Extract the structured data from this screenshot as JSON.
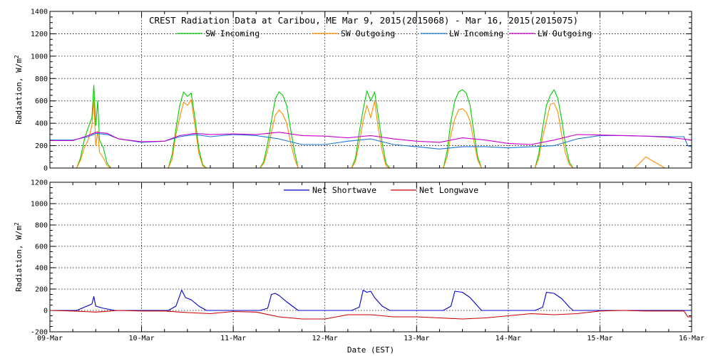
{
  "chart_data": [
    {
      "type": "line",
      "title": "CREST Radiation Data at Caribou, ME   Mar  9, 2015(2015068) - Mar 16, 2015(2015075)",
      "xlabel": "",
      "ylabel": "Radiation, W/m^2",
      "xlim": [
        "2015-03-09T00:00",
        "2015-03-16T00:00"
      ],
      "ylim": [
        0,
        1400
      ],
      "yticks": [
        0,
        200,
        400,
        600,
        800,
        1000,
        1200,
        1400
      ],
      "grid": true,
      "legend_position": "top",
      "series": [
        {
          "name": "SW Incoming",
          "color": "#00cc00",
          "x": [
            "2015-03-09T07:00",
            "2015-03-09T08:00",
            "2015-03-09T09:00",
            "2015-03-09T10:00",
            "2015-03-09T11:00",
            "2015-03-09T11:30",
            "2015-03-09T12:00",
            "2015-03-09T12:30",
            "2015-03-09T13:00",
            "2015-03-09T14:00",
            "2015-03-09T15:00",
            "2015-03-09T16:00",
            "2015-03-09T17:00",
            "2015-03-10T07:00",
            "2015-03-10T08:00",
            "2015-03-10T09:00",
            "2015-03-10T10:00",
            "2015-03-10T11:00",
            "2015-03-10T12:00",
            "2015-03-10T13:00",
            "2015-03-10T14:00",
            "2015-03-10T15:00",
            "2015-03-10T16:00",
            "2015-03-10T17:00",
            "2015-03-11T07:00",
            "2015-03-11T08:00",
            "2015-03-11T09:00",
            "2015-03-11T10:00",
            "2015-03-11T11:00",
            "2015-03-11T12:00",
            "2015-03-11T13:00",
            "2015-03-11T14:00",
            "2015-03-11T15:00",
            "2015-03-11T16:00",
            "2015-03-11T17:00",
            "2015-03-12T07:00",
            "2015-03-12T08:00",
            "2015-03-12T09:00",
            "2015-03-12T10:00",
            "2015-03-12T11:00",
            "2015-03-12T12:00",
            "2015-03-12T13:00",
            "2015-03-12T14:00",
            "2015-03-12T15:00",
            "2015-03-12T16:00",
            "2015-03-12T17:00",
            "2015-03-13T07:00",
            "2015-03-13T08:00",
            "2015-03-13T09:00",
            "2015-03-13T10:00",
            "2015-03-13T11:00",
            "2015-03-13T12:00",
            "2015-03-13T13:00",
            "2015-03-13T14:00",
            "2015-03-13T15:00",
            "2015-03-13T16:00",
            "2015-03-13T17:00",
            "2015-03-14T07:00",
            "2015-03-14T08:00",
            "2015-03-14T09:00",
            "2015-03-14T10:00",
            "2015-03-14T11:00",
            "2015-03-14T12:00",
            "2015-03-14T13:00",
            "2015-03-14T14:00",
            "2015-03-14T15:00",
            "2015-03-14T16:00",
            "2015-03-14T17:00"
          ],
          "y": [
            0,
            90,
            250,
            360,
            450,
            740,
            380,
            600,
            250,
            180,
            40,
            0,
            0,
            0,
            120,
            350,
            560,
            680,
            640,
            670,
            440,
            170,
            30,
            0,
            0,
            60,
            220,
            420,
            620,
            680,
            650,
            560,
            350,
            150,
            0,
            0,
            90,
            320,
            520,
            690,
            600,
            680,
            460,
            220,
            40,
            0,
            0,
            150,
            420,
            600,
            680,
            700,
            670,
            560,
            320,
            100,
            0,
            0,
            130,
            360,
            560,
            650,
            700,
            620,
            430,
            200,
            50,
            0
          ]
        },
        {
          "name": "SW Outgoing",
          "color": "#ff8c00",
          "x": [
            "2015-03-09T07:00",
            "2015-03-09T08:00",
            "2015-03-09T09:00",
            "2015-03-09T10:00",
            "2015-03-09T11:00",
            "2015-03-09T11:30",
            "2015-03-09T12:00",
            "2015-03-09T12:30",
            "2015-03-09T13:00",
            "2015-03-09T14:00",
            "2015-03-09T15:00",
            "2015-03-09T16:00",
            "2015-03-09T17:00",
            "2015-03-10T07:00",
            "2015-03-10T08:00",
            "2015-03-10T09:00",
            "2015-03-10T10:00",
            "2015-03-10T11:00",
            "2015-03-10T12:00",
            "2015-03-10T13:00",
            "2015-03-10T14:00",
            "2015-03-10T15:00",
            "2015-03-10T16:00",
            "2015-03-10T17:00",
            "2015-03-11T07:00",
            "2015-03-11T08:00",
            "2015-03-11T09:00",
            "2015-03-11T10:00",
            "2015-03-11T11:00",
            "2015-03-11T12:00",
            "2015-03-11T13:00",
            "2015-03-11T14:00",
            "2015-03-11T15:00",
            "2015-03-11T16:00",
            "2015-03-11T17:00",
            "2015-03-12T07:00",
            "2015-03-12T08:00",
            "2015-03-12T09:00",
            "2015-03-12T10:00",
            "2015-03-12T11:00",
            "2015-03-12T12:00",
            "2015-03-12T13:00",
            "2015-03-12T14:00",
            "2015-03-12T15:00",
            "2015-03-12T16:00",
            "2015-03-12T17:00",
            "2015-03-13T07:00",
            "2015-03-13T08:00",
            "2015-03-13T09:00",
            "2015-03-13T10:00",
            "2015-03-13T11:00",
            "2015-03-13T12:00",
            "2015-03-13T13:00",
            "2015-03-13T14:00",
            "2015-03-13T15:00",
            "2015-03-13T16:00",
            "2015-03-13T17:00",
            "2015-03-14T07:00",
            "2015-03-14T08:00",
            "2015-03-14T09:00",
            "2015-03-14T10:00",
            "2015-03-14T11:00",
            "2015-03-14T12:00",
            "2015-03-14T13:00",
            "2015-03-14T14:00",
            "2015-03-14T15:00",
            "2015-03-14T16:00",
            "2015-03-14T17:00",
            "2015-03-15T09:00",
            "2015-03-15T10:00",
            "2015-03-15T12:00",
            "2015-03-15T14:00",
            "2015-03-15T16:00",
            "2015-03-15T17:00"
          ],
          "y": [
            0,
            70,
            180,
            250,
            380,
            610,
            200,
            330,
            140,
            90,
            20,
            0,
            0,
            0,
            80,
            300,
            450,
            590,
            560,
            610,
            370,
            130,
            20,
            0,
            0,
            40,
            160,
            320,
            470,
            520,
            480,
            400,
            230,
            90,
            0,
            0,
            60,
            230,
            420,
            560,
            450,
            600,
            350,
            150,
            20,
            0,
            0,
            100,
            300,
            440,
            520,
            530,
            500,
            420,
            240,
            70,
            0,
            0,
            90,
            280,
            420,
            570,
            580,
            500,
            290,
            130,
            30,
            0,
            0,
            30,
            100,
            60,
            20,
            0
          ]
        },
        {
          "name": "LW Incoming",
          "color": "#1f77d4",
          "x": [
            "2015-03-09T00:00",
            "2015-03-09T06:00",
            "2015-03-09T10:00",
            "2015-03-09T12:00",
            "2015-03-09T15:00",
            "2015-03-09T18:00",
            "2015-03-10T00:00",
            "2015-03-10T06:00",
            "2015-03-10T10:00",
            "2015-03-10T14:00",
            "2015-03-10T18:00",
            "2015-03-11T00:00",
            "2015-03-11T06:00",
            "2015-03-11T12:00",
            "2015-03-11T18:00",
            "2015-03-12T00:00",
            "2015-03-12T06:00",
            "2015-03-12T12:00",
            "2015-03-12T18:00",
            "2015-03-13T00:00",
            "2015-03-13T06:00",
            "2015-03-13T12:00",
            "2015-03-13T18:00",
            "2015-03-14T00:00",
            "2015-03-14T06:00",
            "2015-03-14T12:00",
            "2015-03-14T18:00",
            "2015-03-15T00:00",
            "2015-03-15T06:00",
            "2015-03-15T12:00",
            "2015-03-15T18:00",
            "2015-03-15T22:00",
            "2015-03-15T23:00",
            "2015-03-16T00:00"
          ],
          "y": [
            250,
            250,
            280,
            310,
            300,
            260,
            230,
            240,
            280,
            300,
            280,
            300,
            290,
            260,
            210,
            210,
            240,
            260,
            210,
            190,
            170,
            190,
            190,
            180,
            190,
            200,
            260,
            290,
            290,
            285,
            280,
            280,
            200,
            190
          ]
        },
        {
          "name": "LW Outgoing",
          "color": "#cc00cc",
          "x": [
            "2015-03-09T00:00",
            "2015-03-09T06:00",
            "2015-03-09T10:00",
            "2015-03-09T12:00",
            "2015-03-09T15:00",
            "2015-03-09T18:00",
            "2015-03-10T00:00",
            "2015-03-10T06:00",
            "2015-03-10T10:00",
            "2015-03-10T14:00",
            "2015-03-10T18:00",
            "2015-03-11T00:00",
            "2015-03-11T06:00",
            "2015-03-11T12:00",
            "2015-03-11T18:00",
            "2015-03-12T00:00",
            "2015-03-12T06:00",
            "2015-03-12T12:00",
            "2015-03-12T18:00",
            "2015-03-13T00:00",
            "2015-03-13T06:00",
            "2015-03-13T12:00",
            "2015-03-13T18:00",
            "2015-03-14T00:00",
            "2015-03-14T06:00",
            "2015-03-14T12:00",
            "2015-03-14T18:00",
            "2015-03-15T00:00",
            "2015-03-15T06:00",
            "2015-03-15T12:00",
            "2015-03-15T18:00",
            "2015-03-16T00:00"
          ],
          "y": [
            245,
            245,
            290,
            320,
            310,
            260,
            235,
            240,
            290,
            310,
            300,
            305,
            300,
            320,
            290,
            285,
            270,
            290,
            260,
            240,
            230,
            270,
            250,
            220,
            210,
            250,
            300,
            295,
            290,
            285,
            275,
            250
          ]
        }
      ]
    },
    {
      "type": "line",
      "title": "",
      "xlabel": "Date (EST)",
      "ylabel": "Radiation, W/m^2",
      "xlim": [
        "2015-03-09T00:00",
        "2015-03-16T00:00"
      ],
      "ylim": [
        -200,
        1200
      ],
      "yticks": [
        -200,
        0,
        200,
        400,
        600,
        800,
        1000,
        1200
      ],
      "xticks": [
        "09-Mar",
        "10-Mar",
        "11-Mar",
        "12-Mar",
        "13-Mar",
        "14-Mar",
        "15-Mar",
        "16-Mar"
      ],
      "grid": true,
      "legend_position": "top",
      "series": [
        {
          "name": "Net Shortwave",
          "color": "#0000cc",
          "x": [
            "2015-03-09T00:00",
            "2015-03-09T07:00",
            "2015-03-09T09:00",
            "2015-03-09T11:00",
            "2015-03-09T11:30",
            "2015-03-09T12:00",
            "2015-03-09T14:00",
            "2015-03-09T17:00",
            "2015-03-10T07:00",
            "2015-03-10T09:00",
            "2015-03-10T10:30",
            "2015-03-10T11:30",
            "2015-03-10T13:00",
            "2015-03-10T15:00",
            "2015-03-10T17:00",
            "2015-03-11T07:00",
            "2015-03-11T09:00",
            "2015-03-11T10:00",
            "2015-03-11T11:00",
            "2015-03-11T12:00",
            "2015-03-11T14:00",
            "2015-03-11T17:00",
            "2015-03-12T07:00",
            "2015-03-12T09:00",
            "2015-03-12T10:00",
            "2015-03-12T11:00",
            "2015-03-12T12:00",
            "2015-03-12T13:00",
            "2015-03-12T15:00",
            "2015-03-12T17:00",
            "2015-03-13T07:00",
            "2015-03-13T09:00",
            "2015-03-13T10:00",
            "2015-03-13T12:00",
            "2015-03-13T14:00",
            "2015-03-13T16:00",
            "2015-03-13T17:00",
            "2015-03-14T07:00",
            "2015-03-14T09:00",
            "2015-03-14T10:00",
            "2015-03-14T12:00",
            "2015-03-14T14:00",
            "2015-03-14T16:00",
            "2015-03-14T17:00",
            "2015-03-15T00:00",
            "2015-03-16T00:00"
          ],
          "y": [
            0,
            0,
            30,
            60,
            130,
            40,
            20,
            0,
            0,
            40,
            190,
            120,
            100,
            40,
            0,
            0,
            20,
            150,
            160,
            140,
            80,
            0,
            0,
            30,
            190,
            170,
            180,
            120,
            40,
            0,
            0,
            40,
            180,
            170,
            120,
            40,
            0,
            0,
            30,
            170,
            160,
            110,
            30,
            0,
            0,
            0
          ]
        },
        {
          "name": "Net Longwave",
          "color": "#cc0000",
          "x": [
            "2015-03-09T00:00",
            "2015-03-09T06:00",
            "2015-03-09T12:00",
            "2015-03-09T18:00",
            "2015-03-10T00:00",
            "2015-03-10T06:00",
            "2015-03-10T12:00",
            "2015-03-10T18:00",
            "2015-03-11T00:00",
            "2015-03-11T06:00",
            "2015-03-11T12:00",
            "2015-03-11T18:00",
            "2015-03-12T00:00",
            "2015-03-12T06:00",
            "2015-03-12T12:00",
            "2015-03-12T18:00",
            "2015-03-13T00:00",
            "2015-03-13T06:00",
            "2015-03-13T12:00",
            "2015-03-13T18:00",
            "2015-03-14T00:00",
            "2015-03-14T06:00",
            "2015-03-14T12:00",
            "2015-03-14T18:00",
            "2015-03-15T00:00",
            "2015-03-15T06:00",
            "2015-03-15T12:00",
            "2015-03-15T18:00",
            "2015-03-15T22:00",
            "2015-03-15T23:00",
            "2015-03-16T00:00"
          ],
          "y": [
            0,
            -5,
            -15,
            0,
            -5,
            -5,
            -20,
            -30,
            -10,
            -15,
            -60,
            -80,
            -80,
            -40,
            -40,
            -60,
            -60,
            -70,
            -80,
            -70,
            -50,
            -30,
            -40,
            -30,
            -5,
            0,
            -5,
            -5,
            -5,
            -60,
            -60
          ]
        }
      ]
    }
  ]
}
